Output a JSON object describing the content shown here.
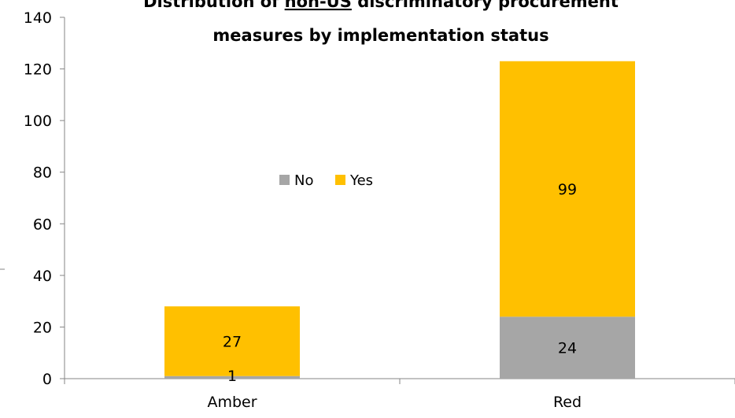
{
  "chart_data": {
    "type": "bar",
    "stacked": true,
    "title_line1_prefix": "Distribution of ",
    "title_line1_underlined": "non-US",
    "title_line1_suffix": " discriminatory procurement",
    "title_line2": "measures by implementation status",
    "categories": [
      "Amber",
      "Red"
    ],
    "series": [
      {
        "name": "No",
        "values": [
          1,
          24
        ],
        "color": "#a6a6a6"
      },
      {
        "name": "Yes",
        "values": [
          27,
          99
        ],
        "color": "#ffc000"
      }
    ],
    "ylim": [
      0,
      140
    ],
    "yticks": [
      "0",
      "20",
      "40",
      "60",
      "80",
      "100",
      "120",
      "140"
    ],
    "legend_position": "center",
    "grid": false,
    "axis_color": "#868686",
    "text_color": "#000000"
  }
}
